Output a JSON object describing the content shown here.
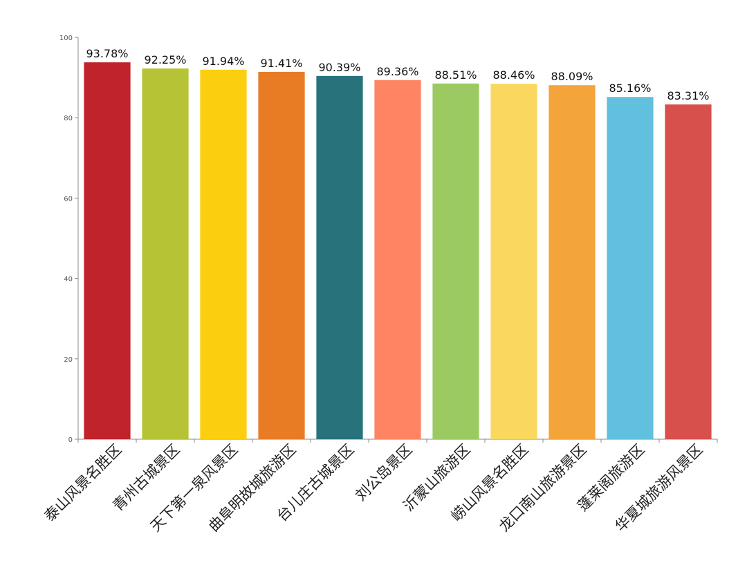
{
  "chart_data": {
    "type": "bar",
    "title": "",
    "xlabel": "",
    "ylabel": "",
    "ylim": [
      0,
      100
    ],
    "yticks": [
      0,
      20,
      40,
      60,
      80,
      100
    ],
    "grid": false,
    "categories": [
      "泰山风景名胜区",
      "青州古城景区",
      "天下第一泉风景区",
      "曲阜明故城旅游区",
      "台儿庄古城景区",
      "刘公岛景区",
      "沂蒙山旅游区",
      "崂山风景名胜区",
      "龙口南山旅游景区",
      "蓬莱阁旅游区",
      "华夏城旅游风景区"
    ],
    "values": [
      93.78,
      92.25,
      91.94,
      91.41,
      90.39,
      89.36,
      88.51,
      88.46,
      88.09,
      85.16,
      83.31
    ],
    "data_labels": [
      "93.78%",
      "92.25%",
      "91.94%",
      "91.41%",
      "90.39%",
      "89.36%",
      "88.51%",
      "88.46%",
      "88.09%",
      "85.16%",
      "83.31%"
    ],
    "colors": [
      "#c1232b",
      "#b5c334",
      "#fcce10",
      "#e87c25",
      "#27727b",
      "#fe8463",
      "#9bca63",
      "#fad860",
      "#f3a43b",
      "#60c0dd",
      "#d7504b"
    ]
  }
}
